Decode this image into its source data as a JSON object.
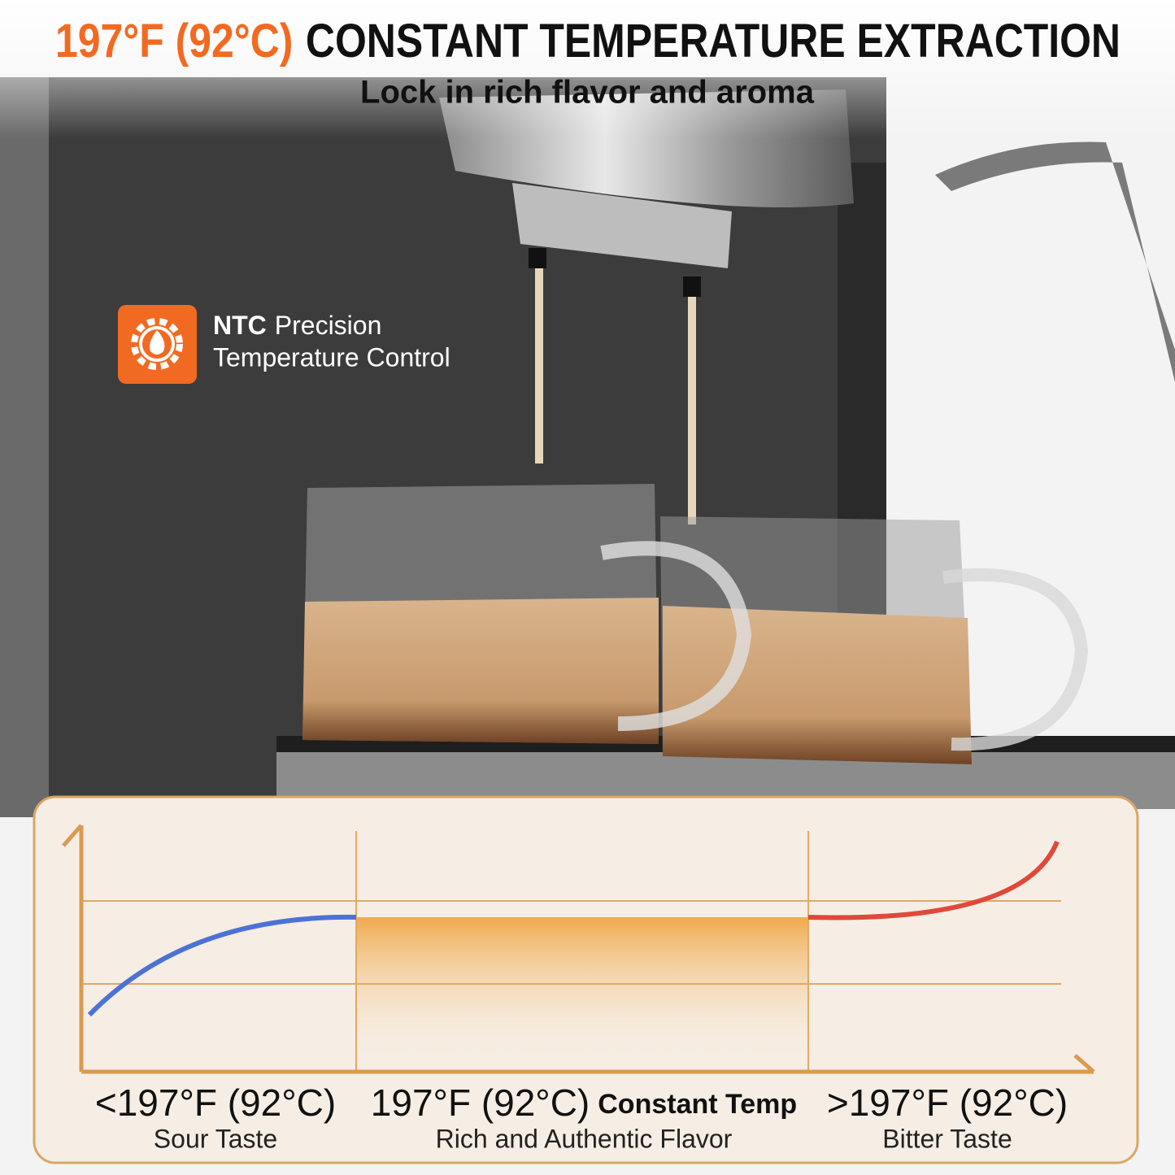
{
  "header": {
    "title_highlight": "197°F (92°C)",
    "title_rest": "CONSTANT TEMPERATURE EXTRACTION",
    "subtitle": "Lock in rich flavor and aroma"
  },
  "feature": {
    "bold": "NTC",
    "line1_rest": "Precision",
    "line2": "Temperature Control"
  },
  "zones": [
    {
      "temp": "<197°F (92°C)",
      "desc": "Sour Taste"
    },
    {
      "temp": "197°F (92°C)",
      "temp_suffix": "Constant Temp",
      "desc": "Rich and Authentic Flavor"
    },
    {
      "temp": ">197°F (92°C)",
      "desc": "Bitter Taste"
    }
  ]
}
